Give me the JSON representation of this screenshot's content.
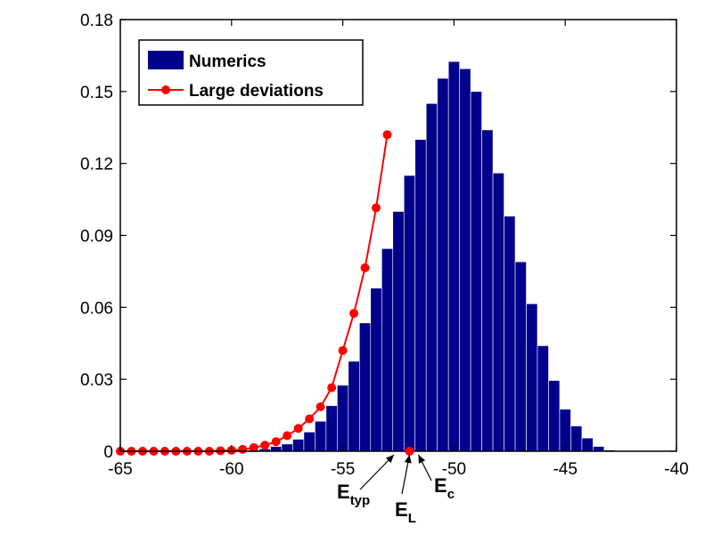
{
  "chart_data": {
    "type": "bar",
    "title": "",
    "xlabel": "",
    "ylabel": "",
    "xlim": [
      -65,
      -40
    ],
    "ylim": [
      0,
      0.18
    ],
    "x_ticks": [
      -65,
      -60,
      -55,
      -50,
      -45,
      -40
    ],
    "y_ticks": [
      0,
      0.03,
      0.06,
      0.09,
      0.12,
      0.15,
      0.18
    ],
    "x_tick_labels": [
      "-65",
      "-60",
      "-55",
      "-50",
      "-45",
      "-40"
    ],
    "y_tick_labels": [
      "0",
      "0.03",
      "0.06",
      "0.09",
      "0.12",
      "0.15",
      "0.18"
    ],
    "grid": false,
    "legend_position": "top-left",
    "colors": {
      "numerics": "#00008b",
      "large_deviations": "#ff0000"
    },
    "series": [
      {
        "name": "Numerics",
        "type": "bar",
        "bin_width": 0.5,
        "x": [
          -59.0,
          -58.5,
          -58.0,
          -57.5,
          -57.0,
          -56.5,
          -56.0,
          -55.5,
          -55.0,
          -54.5,
          -54.0,
          -53.5,
          -53.0,
          -52.5,
          -52.0,
          -51.5,
          -51.0,
          -50.5,
          -50.0,
          -49.5,
          -49.0,
          -48.5,
          -48.0,
          -47.5,
          -47.0,
          -46.5,
          -46.0,
          -45.5,
          -45.0,
          -44.5,
          -44.0,
          -43.5,
          -43.0
        ],
        "values": [
          0.0005,
          0.001,
          0.002,
          0.003,
          0.005,
          0.008,
          0.0125,
          0.019,
          0.0275,
          0.0375,
          0.0535,
          0.068,
          0.0845,
          0.1,
          0.115,
          0.13,
          0.145,
          0.1555,
          0.1625,
          0.1595,
          0.15,
          0.134,
          0.116,
          0.098,
          0.079,
          0.0615,
          0.044,
          0.0295,
          0.0175,
          0.0105,
          0.0055,
          0.002,
          0.0005
        ]
      },
      {
        "name": "Large deviations",
        "type": "line",
        "marker": "circle",
        "x": [
          -65.0,
          -64.5,
          -64.0,
          -63.5,
          -63.0,
          -62.5,
          -62.0,
          -61.5,
          -61.0,
          -60.5,
          -60.0,
          -59.5,
          -59.0,
          -58.5,
          -58.0,
          -57.5,
          -57.0,
          -56.5,
          -56.0,
          -55.5,
          -55.0,
          -54.5,
          -54.0,
          -53.5,
          -53.0
        ],
        "values": [
          0,
          0,
          0,
          0,
          0,
          0,
          0,
          0,
          0,
          0.0002,
          0.0004,
          0.0008,
          0.0015,
          0.0025,
          0.004,
          0.0065,
          0.0095,
          0.0135,
          0.0185,
          0.0265,
          0.042,
          0.0575,
          0.0765,
          0.1015,
          0.132
        ]
      }
    ],
    "legend": [
      "Numerics",
      "Large deviations"
    ],
    "annotations": [
      {
        "name": "E_typ",
        "main": "E",
        "sub": "typ",
        "x": -52.7,
        "marker": false
      },
      {
        "name": "E_L",
        "main": "E",
        "sub": "L",
        "x": -52.0,
        "marker": true
      },
      {
        "name": "E_c",
        "main": "E",
        "sub": "c",
        "x": -51.6,
        "marker": false
      }
    ]
  }
}
